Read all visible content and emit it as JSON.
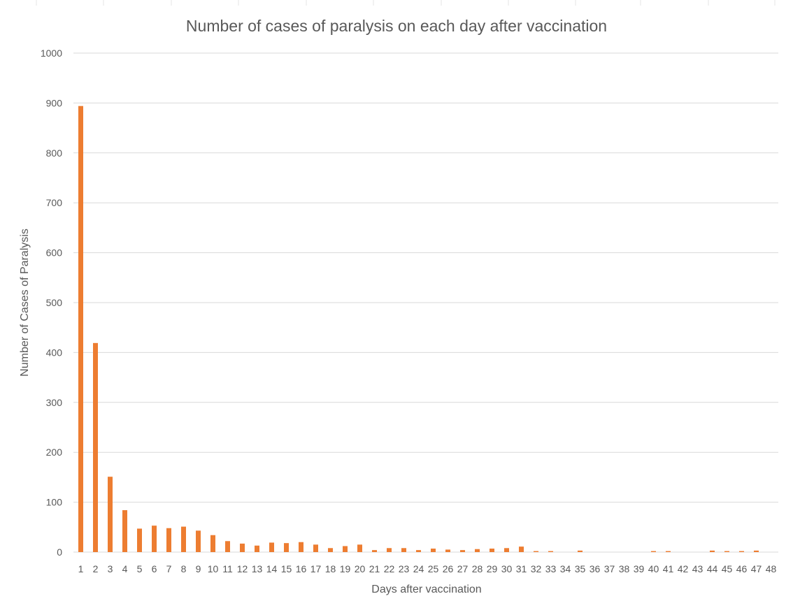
{
  "chart_data": {
    "type": "bar",
    "title": "Number of cases of paralysis on each day after vaccination",
    "xlabel": "Days after vaccination",
    "ylabel": "Number of Cases of Paralysis",
    "ylim": [
      0,
      1000
    ],
    "yticks": [
      "0",
      "100",
      "200",
      "300",
      "400",
      "500",
      "600",
      "700",
      "800",
      "900",
      "1000"
    ],
    "grid": true,
    "legend": "none",
    "bar_color": "#ED7D31",
    "categories": [
      "1",
      "2",
      "3",
      "4",
      "5",
      "6",
      "7",
      "8",
      "9",
      "10",
      "11",
      "12",
      "13",
      "14",
      "15",
      "16",
      "17",
      "18",
      "19",
      "20",
      "21",
      "22",
      "23",
      "24",
      "25",
      "26",
      "27",
      "28",
      "29",
      "30",
      "31",
      "32",
      "33",
      "34",
      "35",
      "36",
      "37",
      "38",
      "39",
      "40",
      "41",
      "42",
      "43",
      "44",
      "45",
      "46",
      "47",
      "48"
    ],
    "values": [
      894,
      419,
      151,
      84,
      47,
      53,
      48,
      51,
      43,
      34,
      22,
      17,
      13,
      19,
      18,
      20,
      15,
      8,
      12,
      15,
      4,
      8,
      8,
      4,
      7,
      5,
      4,
      6,
      7,
      8,
      11,
      2,
      2,
      0,
      3,
      0,
      0,
      0,
      0,
      2,
      2,
      0,
      0,
      3,
      2,
      2,
      3,
      0
    ]
  }
}
